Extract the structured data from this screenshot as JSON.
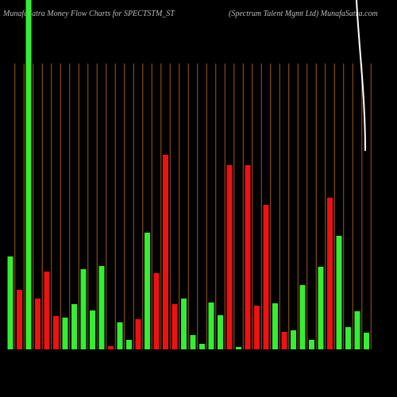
{
  "chart_data": {
    "type": "bar",
    "title": "MunafaSatra  Money Flow  Charts for SPECTSTM_ST",
    "subtitle": "(Spectrum Talent Mgmt Ltd) MunafaSatra.com",
    "values": [
      117,
      75,
      440,
      64,
      98,
      42,
      40,
      57,
      101,
      49,
      105,
      4,
      34,
      12,
      38,
      147,
      96,
      245,
      57,
      64,
      18,
      7,
      59,
      43,
      232,
      3,
      232,
      55,
      182,
      58,
      22,
      24,
      81,
      12,
      104,
      191,
      143,
      28,
      48,
      21
    ],
    "colors": [
      "#33ee33",
      "#ee1111",
      "#33ee33",
      "#ee1111",
      "#ee1111",
      "#ee1111",
      "#33ee33",
      "#33ee33",
      "#33ee33",
      "#33ee33",
      "#33ee33",
      "#ee1111",
      "#33ee33",
      "#33ee33",
      "#ee1111",
      "#33ee33",
      "#ee1111",
      "#ee1111",
      "#ee1111",
      "#33ee33",
      "#33ee33",
      "#33ee33",
      "#33ee33",
      "#33ee33",
      "#ee1111",
      "#33ee33",
      "#ee1111",
      "#ee1111",
      "#ee1111",
      "#33ee33",
      "#ee1111",
      "#33ee33",
      "#33ee33",
      "#33ee33",
      "#33ee33",
      "#ee1111",
      "#33ee33",
      "#33ee33",
      "#33ee33",
      "#33ee33"
    ],
    "ylim": [
      0,
      440
    ]
  }
}
